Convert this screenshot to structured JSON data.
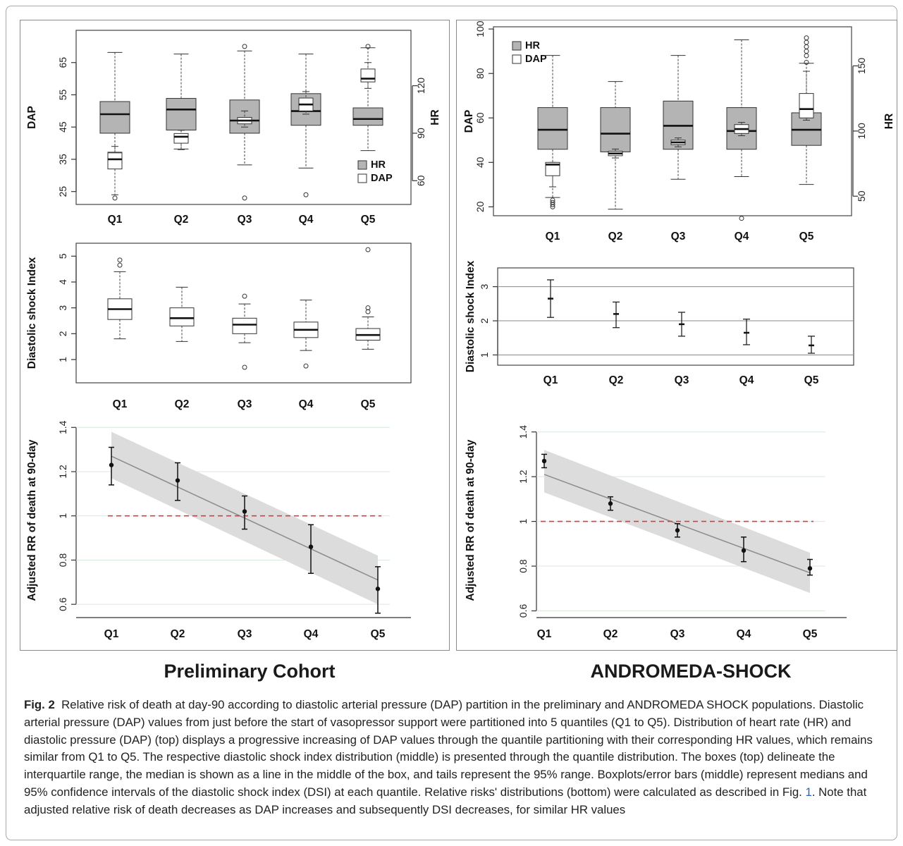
{
  "headings": {
    "left": "Preliminary Cohort",
    "right": "ANDROMEDA-SHOCK"
  },
  "caption": {
    "label": "Fig. 2",
    "part1": "Relative risk of death at day-90 according to diastolic arterial pressure (DAP) partition in the preliminary and ANDROMEDA SHOCK populations. Diastolic arterial pressure (DAP) values from just before the start of vasopressor support were partitioned into 5 quantiles (Q1 to Q5). Distribution of heart rate (HR) and diastolic pressure (DAP) (top) displays a progressive increasing of DAP values through the quantile partitioning with their corresponding HR values, which remains similar from Q1 to Q5. The respective diastolic shock index distribution (middle) is presented through the quantile distribution. The boxes (top) delineate the interquartile range, the median is shown as a line in the middle of the box, and tails represent the 95% range. Boxplots/error bars (middle) represent medians and 95% confidence intervals of the diastolic shock index (DSI) at each quantile. Relative risks' distributions (bottom) were calculated as described in Fig.",
    "ref": "1",
    "part2": ". Note that adjusted relative risk of death decreases as DAP increases and subsequently DSI decreases, for similar HR values"
  },
  "colors": {
    "hr_box": "#b4b4b4",
    "dap_box": "#ffffff",
    "band": "#dcdcdc",
    "trend": "#8c8c8c",
    "reference": "#e23a3a"
  },
  "chart_data": [
    {
      "id": "left-top",
      "type": "boxplot",
      "xlabel": "",
      "ylabel": "DAP",
      "y2label": "HR",
      "categories": [
        "Q1",
        "Q2",
        "Q3",
        "Q4",
        "Q5"
      ],
      "ylim": [
        21,
        75
      ],
      "yticks": [
        25,
        35,
        45,
        55,
        65
      ],
      "y2lim": [
        45,
        155
      ],
      "y2ticks": [
        60,
        90,
        120
      ],
      "legend": {
        "position": "bottom-right",
        "entries": [
          "HR",
          "DAP"
        ]
      },
      "series": [
        {
          "name": "HR",
          "axis": "y2",
          "boxes": [
            {
              "whislo": 78,
              "q1": 90,
              "med": 102,
              "q3": 110,
              "whishi": 141,
              "outliers": []
            },
            {
              "whislo": 80,
              "q1": 92,
              "med": 105,
              "q3": 112,
              "whishi": 140,
              "outliers": []
            },
            {
              "whislo": 70,
              "q1": 90,
              "med": 98,
              "q3": 111,
              "whishi": 142,
              "outliers": []
            },
            {
              "whislo": 68,
              "q1": 95,
              "med": 104,
              "q3": 115,
              "whishi": 140,
              "outliers": []
            },
            {
              "whislo": 79,
              "q1": 95,
              "med": 99,
              "q3": 106,
              "whishi": 144,
              "outliers": []
            }
          ]
        },
        {
          "name": "DAP",
          "axis": "y",
          "boxes": [
            {
              "whislo": 24,
              "q1": 32,
              "med": 35,
              "q3": 37,
              "whishi": 39,
              "outliers": [
                23
              ]
            },
            {
              "whislo": 38,
              "q1": 40,
              "med": 42,
              "q3": 43,
              "whishi": 44,
              "outliers": []
            },
            {
              "whislo": 45,
              "q1": 46,
              "med": 47,
              "q3": 48,
              "whishi": 50,
              "outliers": [
                23,
                70
              ]
            },
            {
              "whislo": 49,
              "q1": 50,
              "med": 52,
              "q3": 54,
              "whishi": 56,
              "outliers": [
                24
              ]
            },
            {
              "whislo": 57,
              "q1": 59,
              "med": 60,
              "q3": 63,
              "whishi": 65,
              "outliers": [
                70
              ]
            }
          ]
        }
      ]
    },
    {
      "id": "left-mid",
      "type": "boxplot",
      "xlabel": "",
      "ylabel": "Diastolic shock Index",
      "categories": [
        "Q1",
        "Q2",
        "Q3",
        "Q4",
        "Q5"
      ],
      "ylim": [
        0.1,
        5.5
      ],
      "yticks": [
        1,
        2,
        3,
        4,
        5
      ],
      "series": [
        {
          "name": "DSI",
          "boxes": [
            {
              "whislo": 1.8,
              "q1": 2.55,
              "med": 2.95,
              "q3": 3.35,
              "whishi": 4.4,
              "outliers": [
                4.65,
                4.85
              ]
            },
            {
              "whislo": 1.7,
              "q1": 2.3,
              "med": 2.6,
              "q3": 3.0,
              "whishi": 3.8,
              "outliers": []
            },
            {
              "whislo": 1.65,
              "q1": 2.0,
              "med": 2.35,
              "q3": 2.6,
              "whishi": 3.15,
              "outliers": [
                0.7,
                3.45
              ]
            },
            {
              "whislo": 1.35,
              "q1": 1.85,
              "med": 2.15,
              "q3": 2.45,
              "whishi": 3.3,
              "outliers": [
                0.75
              ]
            },
            {
              "whislo": 1.4,
              "q1": 1.75,
              "med": 1.95,
              "q3": 2.2,
              "whishi": 2.65,
              "outliers": [
                2.85,
                3.0,
                5.25
              ]
            }
          ]
        }
      ]
    },
    {
      "id": "left-bot",
      "type": "scatter",
      "xlabel": "",
      "ylabel": "Adjusted RR of death at 90-day",
      "categories": [
        "Q1",
        "Q2",
        "Q3",
        "Q4",
        "Q5"
      ],
      "ylim": [
        0.54,
        1.42
      ],
      "yticks": [
        0.6,
        0.8,
        1.0,
        1.2,
        1.4
      ],
      "reference_line": 1.0,
      "trend": {
        "start": 1.27,
        "end": 0.71
      },
      "band": {
        "upper_start": 1.38,
        "upper_end": 0.82,
        "lower_start": 1.17,
        "lower_end": 0.6
      },
      "points": [
        {
          "x": "Q1",
          "y": 1.23,
          "lo": 1.14,
          "hi": 1.31
        },
        {
          "x": "Q2",
          "y": 1.16,
          "lo": 1.07,
          "hi": 1.24
        },
        {
          "x": "Q3",
          "y": 1.02,
          "lo": 0.94,
          "hi": 1.09
        },
        {
          "x": "Q4",
          "y": 0.86,
          "lo": 0.74,
          "hi": 0.96
        },
        {
          "x": "Q5",
          "y": 0.67,
          "lo": 0.56,
          "hi": 0.77
        }
      ]
    },
    {
      "id": "right-top",
      "type": "boxplot",
      "xlabel": "",
      "ylabel": "DAP",
      "y2label": "HR",
      "categories": [
        "Q1",
        "Q2",
        "Q3",
        "Q4",
        "Q5"
      ],
      "ylim": [
        16,
        101
      ],
      "yticks": [
        20,
        40,
        60,
        80,
        100
      ],
      "y2lim": [
        35,
        180
      ],
      "y2ticks": [
        50,
        100,
        150
      ],
      "legend": {
        "position": "top-left",
        "entries": [
          "HR",
          "DAP"
        ]
      },
      "series": [
        {
          "name": "HR",
          "axis": "y2",
          "boxes": [
            {
              "whislo": 49,
              "q1": 86,
              "med": 101,
              "q3": 118,
              "whishi": 158,
              "outliers": []
            },
            {
              "whislo": 40,
              "q1": 84,
              "med": 98,
              "q3": 118,
              "whishi": 138,
              "outliers": []
            },
            {
              "whislo": 63,
              "q1": 86,
              "med": 104,
              "q3": 123,
              "whishi": 158,
              "outliers": []
            },
            {
              "whislo": 65,
              "q1": 86,
              "med": 100,
              "q3": 118,
              "whishi": 170,
              "outliers": [
                33
              ]
            },
            {
              "whislo": 59,
              "q1": 89,
              "med": 101,
              "q3": 114,
              "whishi": 152,
              "outliers": []
            }
          ]
        },
        {
          "name": "DAP",
          "axis": "y",
          "boxes": [
            {
              "whislo": 29,
              "q1": 34,
              "med": 39,
              "q3": 40,
              "whishi": 40,
              "outliers": [
                20,
                21,
                22,
                23
              ]
            },
            {
              "whislo": 42,
              "q1": 43,
              "med": 44,
              "q3": 45,
              "whishi": 46,
              "outliers": []
            },
            {
              "whislo": 47,
              "q1": 48,
              "med": 49,
              "q3": 50,
              "whishi": 51,
              "outliers": []
            },
            {
              "whislo": 52,
              "q1": 53,
              "med": 55,
              "q3": 57,
              "whishi": 58,
              "outliers": []
            },
            {
              "whislo": 59,
              "q1": 60,
              "med": 64,
              "q3": 71,
              "whishi": 81,
              "outliers": [
                85,
                88,
                90,
                92,
                94,
                96
              ]
            }
          ]
        }
      ]
    },
    {
      "id": "right-mid",
      "type": "errorbar",
      "xlabel": "",
      "ylabel": "Diastolic shock Index",
      "categories": [
        "Q1",
        "Q2",
        "Q3",
        "Q4",
        "Q5"
      ],
      "ylim": [
        0.7,
        3.55
      ],
      "yticks": [
        1.0,
        2.0,
        3.0
      ],
      "hlines": [
        1.0,
        2.0,
        3.0
      ],
      "points": [
        {
          "x": "Q1",
          "y": 2.65,
          "lo": 2.1,
          "hi": 3.2
        },
        {
          "x": "Q2",
          "y": 2.2,
          "lo": 1.8,
          "hi": 2.55
        },
        {
          "x": "Q3",
          "y": 1.9,
          "lo": 1.55,
          "hi": 2.25
        },
        {
          "x": "Q4",
          "y": 1.65,
          "lo": 1.3,
          "hi": 2.05
        },
        {
          "x": "Q5",
          "y": 1.28,
          "lo": 1.05,
          "hi": 1.55
        }
      ]
    },
    {
      "id": "right-bot",
      "type": "scatter",
      "xlabel": "",
      "ylabel": "Adjusted RR of death at 90-day",
      "categories": [
        "Q1",
        "Q2",
        "Q3",
        "Q4",
        "Q5"
      ],
      "ylim": [
        0.57,
        1.44
      ],
      "yticks": [
        0.6,
        0.8,
        1.0,
        1.2,
        1.4
      ],
      "reference_line": 1.0,
      "trend": {
        "start": 1.21,
        "end": 0.77
      },
      "band": {
        "upper_start": 1.32,
        "upper_end": 0.86,
        "lower_start": 1.13,
        "lower_end": 0.68
      },
      "points": [
        {
          "x": "Q1",
          "y": 1.27,
          "lo": 1.24,
          "hi": 1.3
        },
        {
          "x": "Q2",
          "y": 1.08,
          "lo": 1.05,
          "hi": 1.11
        },
        {
          "x": "Q3",
          "y": 0.96,
          "lo": 0.93,
          "hi": 0.99
        },
        {
          "x": "Q4",
          "y": 0.87,
          "lo": 0.82,
          "hi": 0.93
        },
        {
          "x": "Q5",
          "y": 0.79,
          "lo": 0.76,
          "hi": 0.83
        }
      ]
    }
  ]
}
